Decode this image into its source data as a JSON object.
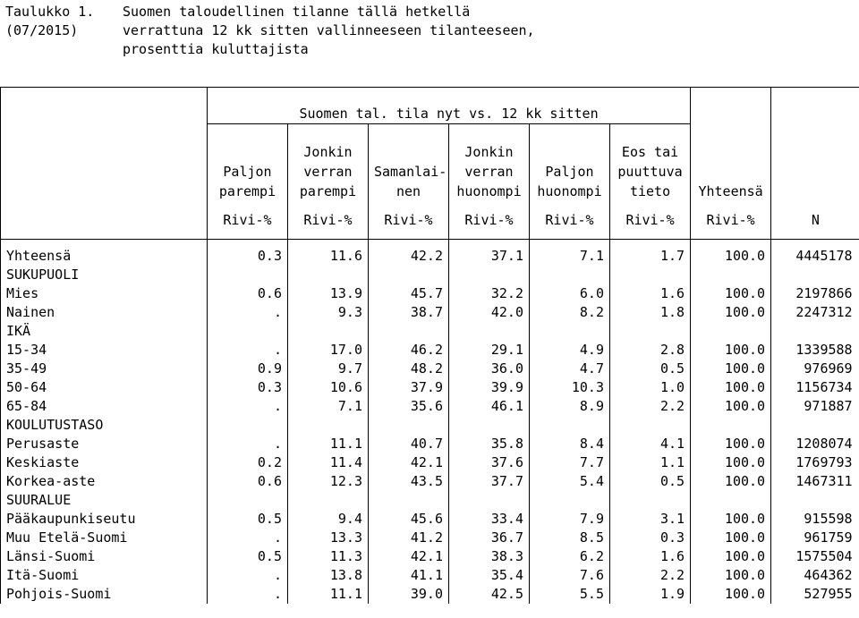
{
  "caption": {
    "label_line1": "Taulukko 1.",
    "label_line2": "(07/2015)",
    "title_line1": "Suomen taloudellinen tilanne tällä hetkellä",
    "title_line2": "verrattuna 12 kk sitten vallinneeseen tilanteeseen,",
    "title_line3": "prosenttia kuluttajista"
  },
  "table": {
    "spanning_header": "Suomen tal. tila nyt vs. 12 kk sitten",
    "columns": [
      {
        "lines": [
          "",
          "Paljon",
          "parempi"
        ]
      },
      {
        "lines": [
          "Jonkin",
          "verran",
          "parempi"
        ]
      },
      {
        "lines": [
          "",
          "Samanlai-",
          "nen"
        ]
      },
      {
        "lines": [
          "Jonkin",
          "verran",
          "huonompi"
        ]
      },
      {
        "lines": [
          "",
          "Paljon",
          "huonompi"
        ]
      },
      {
        "lines": [
          "Eos tai",
          "puuttuva",
          "tieto"
        ]
      },
      {
        "lines": [
          "",
          "",
          "Yhteensä"
        ]
      }
    ],
    "units": [
      "Rivi-%",
      "Rivi-%",
      "Rivi-%",
      "Rivi-%",
      "Rivi-%",
      "Rivi-%",
      "Rivi-%",
      "N"
    ],
    "rows": [
      {
        "label": "Yhteensä",
        "values": [
          "0.3",
          "11.6",
          "42.2",
          "37.1",
          "7.1",
          "1.7",
          "100.0",
          "4445178"
        ]
      },
      {
        "label": "SUKUPUOLI",
        "values": [
          "",
          "",
          "",
          "",
          "",
          "",
          "",
          ""
        ]
      },
      {
        "label": "Mies",
        "values": [
          "0.6",
          "13.9",
          "45.7",
          "32.2",
          "6.0",
          "1.6",
          "100.0",
          "2197866"
        ]
      },
      {
        "label": "Nainen",
        "values": [
          ".",
          "9.3",
          "38.7",
          "42.0",
          "8.2",
          "1.8",
          "100.0",
          "2247312"
        ]
      },
      {
        "label": "IKÄ",
        "values": [
          "",
          "",
          "",
          "",
          "",
          "",
          "",
          ""
        ]
      },
      {
        "label": "15-34",
        "values": [
          ".",
          "17.0",
          "46.2",
          "29.1",
          "4.9",
          "2.8",
          "100.0",
          "1339588"
        ]
      },
      {
        "label": "35-49",
        "values": [
          "0.9",
          "9.7",
          "48.2",
          "36.0",
          "4.7",
          "0.5",
          "100.0",
          "976969"
        ]
      },
      {
        "label": "50-64",
        "values": [
          "0.3",
          "10.6",
          "37.9",
          "39.9",
          "10.3",
          "1.0",
          "100.0",
          "1156734"
        ]
      },
      {
        "label": "65-84",
        "values": [
          ".",
          "7.1",
          "35.6",
          "46.1",
          "8.9",
          "2.2",
          "100.0",
          "971887"
        ]
      },
      {
        "label": "KOULUTUSTASO",
        "values": [
          "",
          "",
          "",
          "",
          "",
          "",
          "",
          ""
        ]
      },
      {
        "label": "Perusaste",
        "values": [
          ".",
          "11.1",
          "40.7",
          "35.8",
          "8.4",
          "4.1",
          "100.0",
          "1208074"
        ]
      },
      {
        "label": "Keskiaste",
        "values": [
          "0.2",
          "11.4",
          "42.1",
          "37.6",
          "7.7",
          "1.1",
          "100.0",
          "1769793"
        ]
      },
      {
        "label": "Korkea-aste",
        "values": [
          "0.6",
          "12.3",
          "43.5",
          "37.7",
          "5.4",
          "0.5",
          "100.0",
          "1467311"
        ]
      },
      {
        "label": "SUURALUE",
        "values": [
          "",
          "",
          "",
          "",
          "",
          "",
          "",
          ""
        ]
      },
      {
        "label": "Pääkaupunkiseutu",
        "values": [
          "0.5",
          "9.4",
          "45.6",
          "33.4",
          "7.9",
          "3.1",
          "100.0",
          "915598"
        ]
      },
      {
        "label": "Muu Etelä-Suomi",
        "values": [
          ".",
          "13.3",
          "41.2",
          "36.7",
          "8.5",
          "0.3",
          "100.0",
          "961759"
        ]
      },
      {
        "label": "Länsi-Suomi",
        "values": [
          "0.5",
          "11.3",
          "42.1",
          "38.3",
          "6.2",
          "1.6",
          "100.0",
          "1575504"
        ]
      },
      {
        "label": "Itä-Suomi",
        "values": [
          ".",
          "13.8",
          "41.1",
          "35.4",
          "7.6",
          "2.2",
          "100.0",
          "464362"
        ]
      },
      {
        "label": "Pohjois-Suomi",
        "values": [
          ".",
          "11.1",
          "39.0",
          "42.5",
          "5.5",
          "1.9",
          "100.0",
          "527955"
        ]
      }
    ]
  }
}
